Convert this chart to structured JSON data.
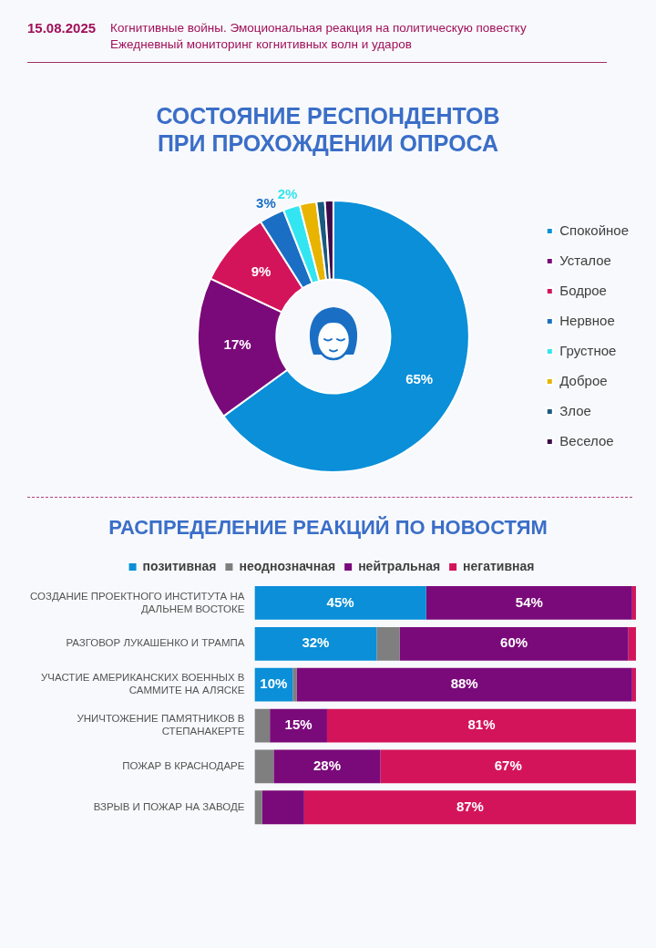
{
  "chart_data": [
    {
      "type": "donut",
      "title": "СОСТОЯНИЕ РЕСПОНДЕНТОВ ПРИ ПРОХОЖДЕНИИ ОПРОСА",
      "annotations": [
        "15.08.2025",
        "Когнитивные войны. Эмоциональная реакция на политическую повестку",
        "Ежедневный мониторинг когнитивных волн и ударов"
      ],
      "categories": [
        "Спокойное",
        "Усталое",
        "Бодрое",
        "Нервное",
        "Грустное",
        "Доброе",
        "Злое",
        "Веселое"
      ],
      "values": [
        65,
        17,
        9,
        3,
        2,
        2,
        1,
        1
      ],
      "colors": [
        "#0a8fd8",
        "#7a0a7a",
        "#d4145a",
        "#1a6fc4",
        "#33e5f0",
        "#e8b400",
        "#1a5a80",
        "#3d0a4a"
      ],
      "value_labels": [
        "65%",
        "17%",
        "9%",
        "3%",
        "2%",
        null,
        null,
        null
      ],
      "legend": "right"
    },
    {
      "type": "bar",
      "orientation": "horizontal",
      "stacked": true,
      "title": "РАСПРЕДЕЛЕНИЕ РЕАКЦИЙ ПО НОВОСТЯМ",
      "categories": [
        "СОЗДАНИЕ ПРОЕКТНОГО ИНСТИТУТА НА ДАЛЬНЕМ ВОСТОКЕ",
        "РАЗГОВОР ЛУКАШЕНКО И ТРАМПА",
        "УЧАСТИЕ АМЕРИКАНСКИХ ВОЕННЫХ В САММИТЕ НА АЛЯСКЕ",
        "УНИЧТОЖЕНИЕ ПАМЯТНИКОВ В СТЕПАНАКЕРТЕ",
        "ПОЖАР В КРАСНОДАРЕ",
        "ВЗРЫВ И ПОЖАР НА ЗАВОДЕ"
      ],
      "xlim": [
        0,
        100
      ],
      "tick_labels": "y",
      "legend": "top",
      "series": [
        {
          "name": "позитивная",
          "color": "#0a8fd8",
          "values": [
            45,
            32,
            10,
            0,
            0,
            0
          ],
          "value_labels": [
            "45%",
            "32%",
            "10%",
            null,
            null,
            null
          ]
        },
        {
          "name": "неоднозначная",
          "color": "#7f7f7f",
          "values": [
            0,
            6,
            1,
            4,
            5,
            2
          ],
          "value_labels": [
            null,
            null,
            null,
            null,
            null,
            null
          ]
        },
        {
          "name": "нейтральная",
          "color": "#7a0a7a",
          "values": [
            54,
            60,
            88,
            15,
            28,
            11
          ],
          "value_labels": [
            "54%",
            "60%",
            "88%",
            "15%",
            "28%",
            null
          ]
        },
        {
          "name": "негативная",
          "color": "#d4145a",
          "values": [
            1,
            2,
            1,
            81,
            67,
            87
          ],
          "value_labels": [
            null,
            null,
            null,
            "81%",
            "67%",
            "87%"
          ]
        }
      ]
    }
  ]
}
